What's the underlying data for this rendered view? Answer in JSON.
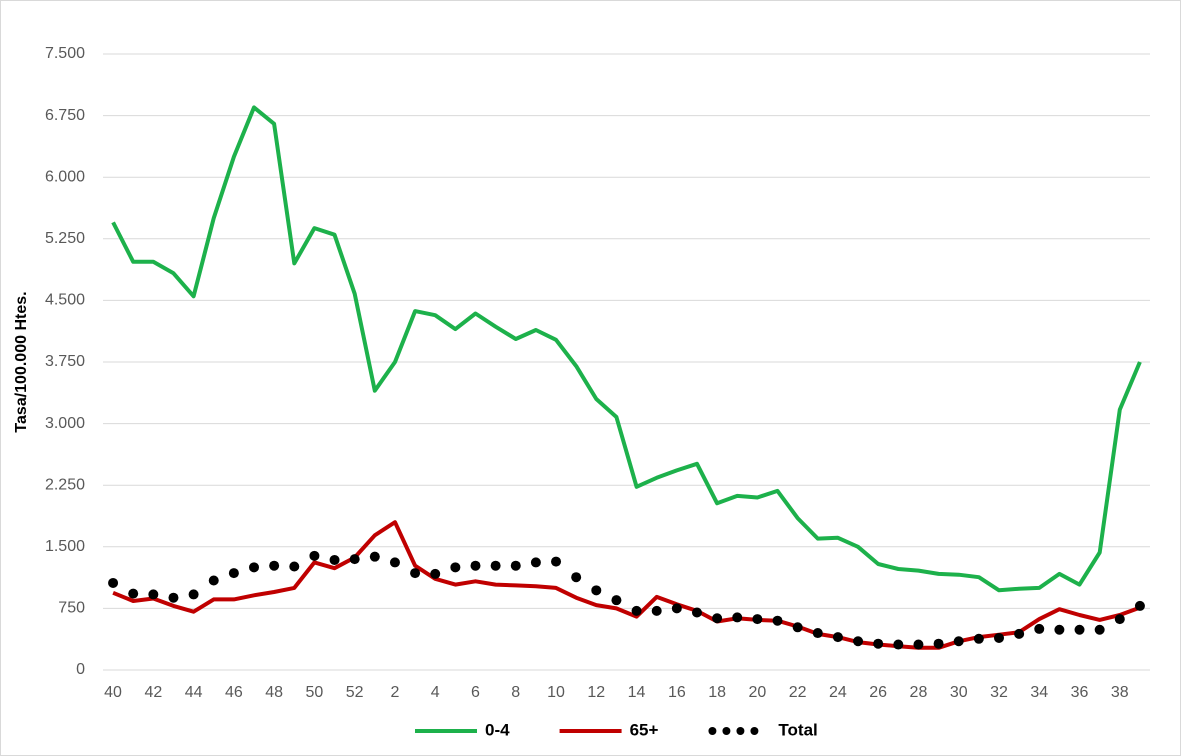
{
  "chart_data": {
    "type": "line",
    "y_label": "Tasa/100.000 Htes.",
    "categories": [
      "40",
      null,
      "42",
      null,
      "44",
      null,
      "46",
      null,
      "48",
      null,
      "50",
      null,
      "52",
      null,
      "2",
      null,
      "4",
      null,
      "6",
      null,
      "8",
      null,
      "10",
      null,
      "12",
      null,
      "14",
      null,
      "16",
      null,
      "18",
      null,
      "20",
      null,
      "22",
      null,
      "24",
      null,
      "26",
      null,
      "28",
      null,
      "30",
      null,
      "32",
      null,
      "34",
      null,
      "36",
      null,
      "38",
      null
    ],
    "series": [
      {
        "name": "0-4",
        "color": "#1db14b",
        "style": "line",
        "values": [
          5450,
          4970,
          4970,
          4830,
          4550,
          5500,
          6250,
          6850,
          6650,
          4950,
          5380,
          5300,
          4580,
          3400,
          3750,
          4370,
          4320,
          4150,
          4340,
          4180,
          4030,
          4140,
          4020,
          3700,
          3300,
          3080,
          2230,
          2340,
          2430,
          2510,
          2030,
          2120,
          2100,
          2180,
          1850,
          1600,
          1610,
          1500,
          1290,
          1230,
          1210,
          1170,
          1160,
          1130,
          970,
          990,
          1000,
          1170,
          1040,
          1430,
          3170,
          3750
        ]
      },
      {
        "name": "65+",
        "color": "#c00000",
        "style": "line",
        "values": [
          940,
          840,
          870,
          780,
          710,
          860,
          860,
          910,
          950,
          1000,
          1310,
          1240,
          1370,
          1640,
          1800,
          1270,
          1110,
          1040,
          1080,
          1040,
          1030,
          1020,
          1000,
          880,
          790,
          750,
          650,
          890,
          800,
          720,
          590,
          630,
          610,
          600,
          530,
          440,
          400,
          340,
          310,
          290,
          270,
          270,
          350,
          400,
          430,
          460,
          620,
          740,
          670,
          610,
          670,
          760
        ]
      },
      {
        "name": "Total",
        "color": "#000000",
        "style": "dots",
        "values": [
          1060,
          930,
          920,
          880,
          920,
          1090,
          1180,
          1250,
          1270,
          1260,
          1390,
          1340,
          1350,
          1380,
          1310,
          1180,
          1170,
          1250,
          1270,
          1270,
          1270,
          1310,
          1320,
          1130,
          970,
          850,
          720,
          720,
          750,
          700,
          630,
          640,
          620,
          600,
          520,
          450,
          400,
          350,
          320,
          310,
          310,
          320,
          350,
          380,
          390,
          440,
          500,
          490,
          490,
          490,
          620,
          780
        ]
      }
    ],
    "ylim": [
      0,
      7500
    ],
    "yticks": [
      0,
      {
        "value": 750,
        "label": "750"
      },
      {
        "value": 1500,
        "label": "1.500"
      },
      {
        "value": 2250,
        "label": "2.250"
      },
      {
        "value": 3000,
        "label": "3.000"
      },
      {
        "value": 3750,
        "label": "3.750"
      },
      {
        "value": 4500,
        "label": "4.500"
      },
      {
        "value": 5250,
        "label": "5.250"
      },
      {
        "value": 6000,
        "label": "6.000"
      },
      {
        "value": 6750,
        "label": "6.750"
      },
      {
        "value": 7500,
        "label": "7.500"
      }
    ],
    "grid": true,
    "legend": "bottom"
  }
}
